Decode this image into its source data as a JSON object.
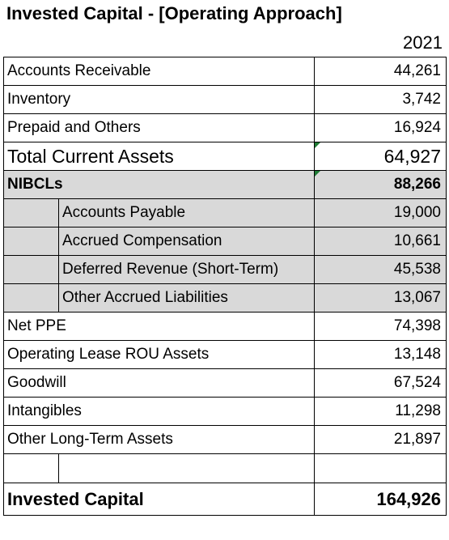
{
  "header": {
    "title": "Invested Capital - [Operating Approach]",
    "year": "2021"
  },
  "rows": [
    {
      "label": "Accounts Receivable",
      "value": "44,261"
    },
    {
      "label": "Inventory",
      "value": "3,742"
    },
    {
      "label": "Prepaid and Others",
      "value": "16,924"
    },
    {
      "label": "Total Current Assets",
      "value": "64,927"
    },
    {
      "label": "NIBCLs",
      "value": "88,266"
    },
    {
      "label": "Accounts Payable",
      "value": "19,000"
    },
    {
      "label": "Accrued Compensation",
      "value": "10,661"
    },
    {
      "label": "Deferred Revenue (Short-Term)",
      "value": "45,538"
    },
    {
      "label": "Other Accrued Liabilities",
      "value": "13,067"
    },
    {
      "label": "Net PPE",
      "value": "74,398"
    },
    {
      "label": "Operating Lease ROU Assets",
      "value": "13,148"
    },
    {
      "label": "Goodwill",
      "value": "67,524"
    },
    {
      "label": "Intangibles",
      "value": "11,298"
    },
    {
      "label": "Other Long-Term Assets",
      "value": "21,897"
    },
    {
      "label": "Invested Capital",
      "value": "164,926"
    }
  ],
  "colors": {
    "shade": "#d9d9d9",
    "comment_flag": "#1e7b34",
    "border": "#000000"
  }
}
